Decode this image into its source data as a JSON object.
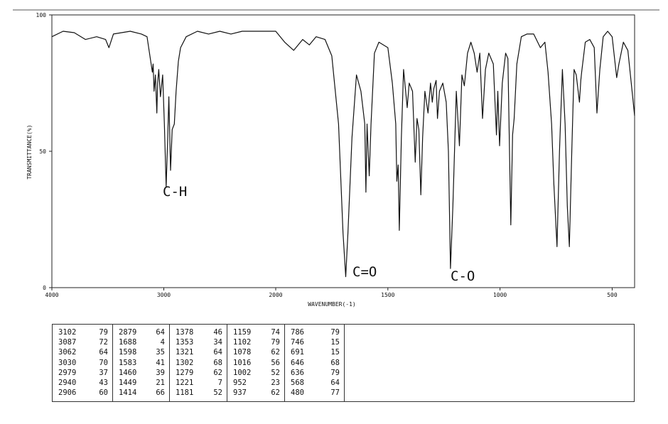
{
  "chart_data": {
    "type": "line",
    "x_axis": {
      "label": "WAVENUMBER(-1)",
      "xlim": [
        4000,
        400
      ],
      "ticks": [
        "4000",
        "3000",
        "2000",
        "1500",
        "1000",
        "500"
      ]
    },
    "y_axis": {
      "label": "TRANSMITTANCE(%)",
      "ylim": [
        0,
        100
      ],
      "ticks": [
        "100",
        "50",
        "0"
      ]
    },
    "grid": false,
    "series": [
      {
        "points": [
          [
            4000,
            92
          ],
          [
            3900,
            94
          ],
          [
            3800,
            93.5
          ],
          [
            3700,
            91
          ],
          [
            3600,
            92
          ],
          [
            3520,
            91
          ],
          [
            3490,
            88
          ],
          [
            3450,
            93
          ],
          [
            3300,
            94
          ],
          [
            3200,
            93
          ],
          [
            3150,
            92
          ],
          [
            3102,
            79
          ],
          [
            3095,
            82
          ],
          [
            3087,
            72
          ],
          [
            3075,
            78
          ],
          [
            3062,
            64
          ],
          [
            3055,
            75
          ],
          [
            3045,
            80
          ],
          [
            3030,
            70
          ],
          [
            3010,
            78
          ],
          [
            2995,
            60
          ],
          [
            2979,
            37
          ],
          [
            2965,
            55
          ],
          [
            2955,
            70
          ],
          [
            2940,
            43
          ],
          [
            2925,
            58
          ],
          [
            2906,
            60
          ],
          [
            2890,
            72
          ],
          [
            2870,
            83
          ],
          [
            2850,
            88
          ],
          [
            2800,
            92
          ],
          [
            2700,
            94
          ],
          [
            2600,
            93
          ],
          [
            2500,
            94
          ],
          [
            2400,
            93
          ],
          [
            2300,
            94
          ],
          [
            2200,
            94
          ],
          [
            2100,
            94
          ],
          [
            2000,
            94
          ],
          [
            1960,
            90
          ],
          [
            1920,
            87
          ],
          [
            1880,
            91
          ],
          [
            1850,
            89
          ],
          [
            1820,
            92
          ],
          [
            1780,
            91
          ],
          [
            1750,
            85
          ],
          [
            1720,
            60
          ],
          [
            1700,
            20
          ],
          [
            1688,
            4
          ],
          [
            1678,
            20
          ],
          [
            1660,
            55
          ],
          [
            1640,
            78
          ],
          [
            1620,
            72
          ],
          [
            1603,
            60
          ],
          [
            1598,
            35
          ],
          [
            1593,
            60
          ],
          [
            1583,
            41
          ],
          [
            1575,
            60
          ],
          [
            1560,
            86
          ],
          [
            1540,
            90
          ],
          [
            1500,
            88
          ],
          [
            1480,
            75
          ],
          [
            1465,
            60
          ],
          [
            1460,
            39
          ],
          [
            1454,
            45
          ],
          [
            1449,
            21
          ],
          [
            1440,
            55
          ],
          [
            1430,
            80
          ],
          [
            1414,
            66
          ],
          [
            1405,
            75
          ],
          [
            1390,
            72
          ],
          [
            1378,
            46
          ],
          [
            1370,
            62
          ],
          [
            1362,
            58
          ],
          [
            1353,
            34
          ],
          [
            1345,
            55
          ],
          [
            1335,
            72
          ],
          [
            1321,
            64
          ],
          [
            1310,
            75
          ],
          [
            1302,
            68
          ],
          [
            1295,
            73
          ],
          [
            1285,
            76
          ],
          [
            1279,
            62
          ],
          [
            1270,
            72
          ],
          [
            1255,
            75
          ],
          [
            1240,
            68
          ],
          [
            1230,
            50
          ],
          [
            1221,
            7
          ],
          [
            1210,
            30
          ],
          [
            1195,
            72
          ],
          [
            1181,
            52
          ],
          [
            1170,
            78
          ],
          [
            1159,
            74
          ],
          [
            1145,
            86
          ],
          [
            1130,
            90
          ],
          [
            1115,
            86
          ],
          [
            1102,
            79
          ],
          [
            1090,
            86
          ],
          [
            1078,
            62
          ],
          [
            1065,
            80
          ],
          [
            1050,
            86
          ],
          [
            1030,
            82
          ],
          [
            1016,
            56
          ],
          [
            1010,
            72
          ],
          [
            1002,
            52
          ],
          [
            990,
            75
          ],
          [
            975,
            86
          ],
          [
            965,
            84
          ],
          [
            952,
            23
          ],
          [
            944,
            56
          ],
          [
            937,
            62
          ],
          [
            925,
            82
          ],
          [
            905,
            92
          ],
          [
            880,
            93
          ],
          [
            850,
            93
          ],
          [
            820,
            88
          ],
          [
            800,
            90
          ],
          [
            786,
            79
          ],
          [
            770,
            60
          ],
          [
            760,
            38
          ],
          [
            746,
            15
          ],
          [
            735,
            50
          ],
          [
            722,
            80
          ],
          [
            710,
            60
          ],
          [
            700,
            30
          ],
          [
            691,
            15
          ],
          [
            680,
            50
          ],
          [
            670,
            80
          ],
          [
            660,
            78
          ],
          [
            646,
            68
          ],
          [
            640,
            76
          ],
          [
            636,
            79
          ],
          [
            620,
            90
          ],
          [
            600,
            91
          ],
          [
            580,
            88
          ],
          [
            568,
            64
          ],
          [
            555,
            80
          ],
          [
            540,
            92
          ],
          [
            520,
            94
          ],
          [
            500,
            92
          ],
          [
            480,
            77
          ],
          [
            470,
            82
          ],
          [
            450,
            90
          ],
          [
            430,
            87
          ],
          [
            415,
            75
          ],
          [
            400,
            63
          ]
        ]
      }
    ],
    "annotations": [
      "C-H",
      "C=O",
      "C-O"
    ],
    "peak_table": [
      [
        [
          "3102",
          "79"
        ],
        [
          "3087",
          "72"
        ],
        [
          "3062",
          "64"
        ],
        [
          "3030",
          "70"
        ],
        [
          "2979",
          "37"
        ],
        [
          "2940",
          "43"
        ],
        [
          "2906",
          "60"
        ]
      ],
      [
        [
          "2879",
          "64"
        ],
        [
          "1688",
          "4"
        ],
        [
          "1598",
          "35"
        ],
        [
          "1583",
          "41"
        ],
        [
          "1460",
          "39"
        ],
        [
          "1449",
          "21"
        ],
        [
          "1414",
          "66"
        ]
      ],
      [
        [
          "1378",
          "46"
        ],
        [
          "1353",
          "34"
        ],
        [
          "1321",
          "64"
        ],
        [
          "1302",
          "68"
        ],
        [
          "1279",
          "62"
        ],
        [
          "1221",
          "7"
        ],
        [
          "1181",
          "52"
        ]
      ],
      [
        [
          "1159",
          "74"
        ],
        [
          "1102",
          "79"
        ],
        [
          "1078",
          "62"
        ],
        [
          "1016",
          "56"
        ],
        [
          "1002",
          "52"
        ],
        [
          "952",
          "23"
        ],
        [
          "937",
          "62"
        ]
      ],
      [
        [
          "786",
          "79"
        ],
        [
          "746",
          "15"
        ],
        [
          "691",
          "15"
        ],
        [
          "646",
          "68"
        ],
        [
          "636",
          "79"
        ],
        [
          "568",
          "64"
        ],
        [
          "480",
          "77"
        ]
      ]
    ]
  }
}
